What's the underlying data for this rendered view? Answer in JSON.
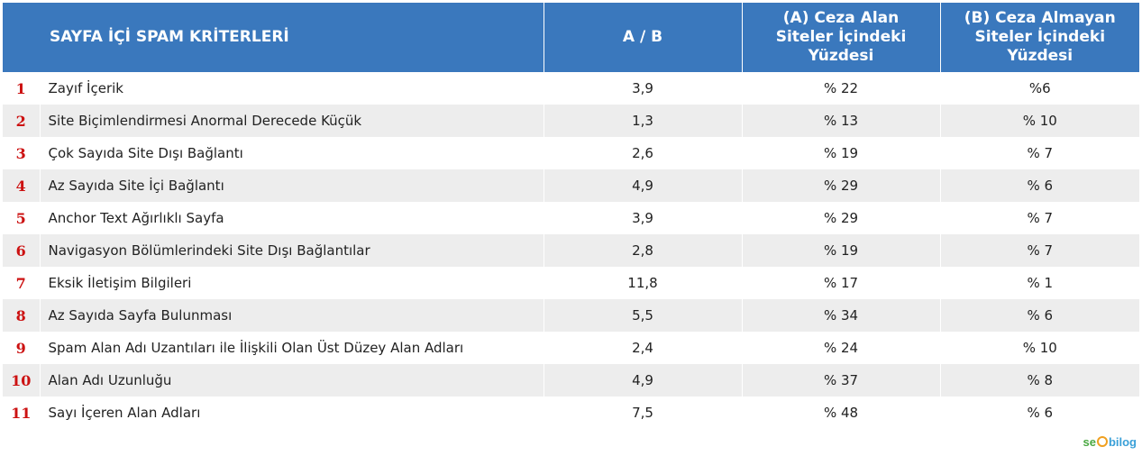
{
  "table": {
    "headers": {
      "criteria": "SAYFA İÇİ SPAM KRİTERLERİ",
      "ratio": "A / B",
      "col_a": [
        "(A) Ceza Alan",
        "Siteler İçindeki",
        "Yüzdesi"
      ],
      "col_b": [
        "(B) Ceza Almayan",
        "Siteler İçindeki",
        "Yüzdesi"
      ]
    },
    "rows": [
      {
        "num": "1",
        "name": "Zayıf İçerik",
        "ratio": "3,9",
        "a": "% 22",
        "b": "%6"
      },
      {
        "num": "2",
        "name": "Site Biçimlendirmesi Anormal Derecede Küçük",
        "ratio": "1,3",
        "a": "% 13",
        "b": "% 10"
      },
      {
        "num": "3",
        "name": "Çok Sayıda Site Dışı Bağlantı",
        "ratio": "2,6",
        "a": "% 19",
        "b": "% 7"
      },
      {
        "num": "4",
        "name": "Az Sayıda Site İçi Bağlantı",
        "ratio": "4,9",
        "a": "% 29",
        "b": "% 6"
      },
      {
        "num": "5",
        "name": "Anchor Text Ağırlıklı Sayfa",
        "ratio": "3,9",
        "a": "% 29",
        "b": "% 7"
      },
      {
        "num": "6",
        "name": "Navigasyon Bölümlerindeki Site Dışı Bağlantılar",
        "ratio": "2,8",
        "a": "% 19",
        "b": "% 7"
      },
      {
        "num": "7",
        "name": "Eksik İletişim Bilgileri",
        "ratio": "11,8",
        "a": "% 17",
        "b": "% 1"
      },
      {
        "num": "8",
        "name": "Az Sayıda Sayfa Bulunması",
        "ratio": "5,5",
        "a": "% 34",
        "b": "% 6"
      },
      {
        "num": "9",
        "name": "Spam Alan Adı Uzantıları ile İlişkili Olan Üst Düzey Alan Adları",
        "ratio": "2,4",
        "a": "% 24",
        "b": "% 10"
      },
      {
        "num": "10",
        "name": "Alan Adı Uzunluğu",
        "ratio": "4,9",
        "a": "% 37",
        "b": "% 8"
      },
      {
        "num": "11",
        "name": "Sayı İçeren Alan Adları",
        "ratio": "7,5",
        "a": "% 48",
        "b": "% 6"
      }
    ]
  },
  "logo": {
    "seo": "se",
    "rest": "bilog"
  },
  "colors": {
    "header_bg": "#3a78bd",
    "row_alt_bg": "#ededed",
    "row_number": "#cc1111"
  }
}
